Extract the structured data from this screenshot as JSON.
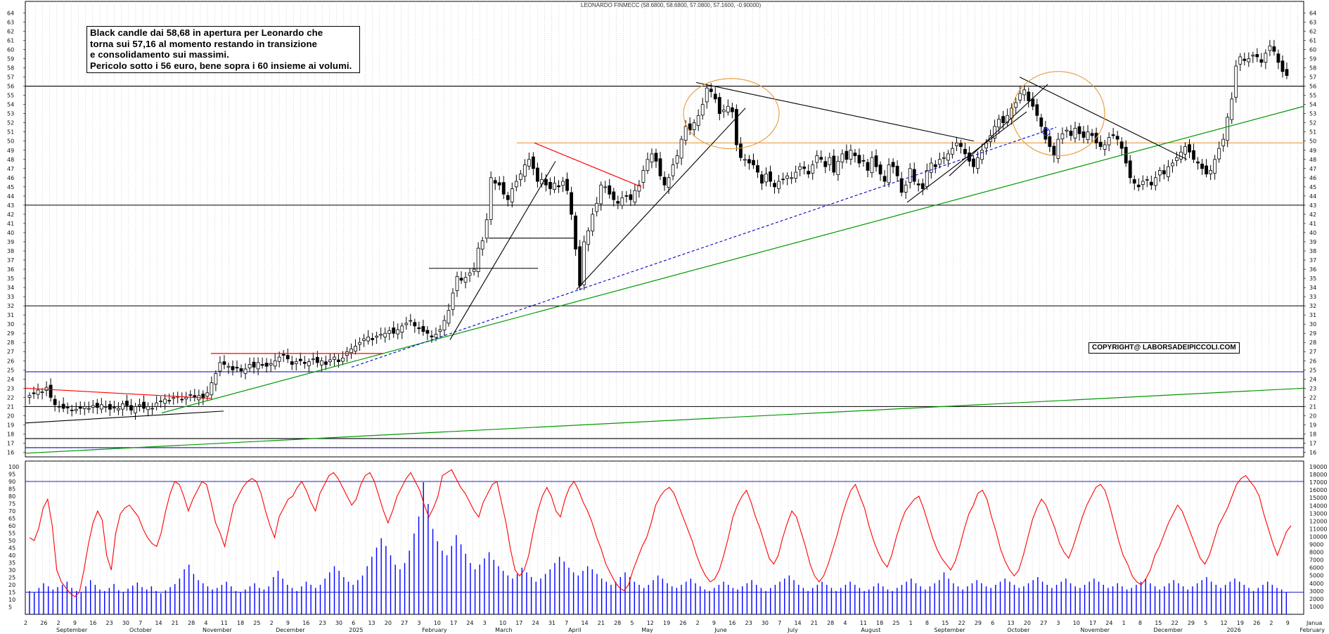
{
  "chart_data": [
    {
      "type": "candlestick",
      "title": "LEONARDO FINMECC (58.6800, 58.6800, 57.0800, 57.1600, -0.90000)",
      "ylim": [
        15.5,
        64.8
      ],
      "price_ticks": [
        16,
        17,
        18,
        19,
        20,
        21,
        22,
        23,
        24,
        25,
        26,
        27,
        28,
        29,
        30,
        31,
        32,
        33,
        34,
        35,
        36,
        37,
        38,
        39,
        40,
        41,
        42,
        43,
        44,
        45,
        46,
        47,
        48,
        49,
        50,
        51,
        52,
        53,
        54,
        55,
        56,
        57,
        58,
        59,
        60,
        61,
        62,
        63,
        64
      ],
      "last_candle": {
        "open": 58.68,
        "high": 58.68,
        "low": 57.08,
        "close": 57.16,
        "change": -0.9
      },
      "daily_closes": [
        22.2,
        22.4,
        22.8,
        22.6,
        23.1,
        22.0,
        21.2,
        21.0,
        20.8,
        20.9,
        20.6,
        20.7,
        20.8,
        21.0,
        20.8,
        21.1,
        20.9,
        21.2,
        21.0,
        20.7,
        20.9,
        20.8,
        21.3,
        21.1,
        20.6,
        21.0,
        21.2,
        20.8,
        21.0,
        20.8,
        21.4,
        21.6,
        21.8,
        21.6,
        22.0,
        22.1,
        21.8,
        22.0,
        22.3,
        22.0,
        22.2,
        21.9,
        22.5,
        23.6,
        24.6,
        25.8,
        25.6,
        25.4,
        25.0,
        25.2,
        24.9,
        25.1,
        25.6,
        25.3,
        25.8,
        25.5,
        25.4,
        25.7,
        26.0,
        26.4,
        26.6,
        26.2,
        25.6,
        25.9,
        26.0,
        25.7,
        25.9,
        26.2,
        25.8,
        26.0,
        25.6,
        26.1,
        26.4,
        25.9,
        26.3,
        27.0,
        27.3,
        27.6,
        28.0,
        28.4,
        28.6,
        28.3,
        28.7,
        28.9,
        29.0,
        29.3,
        29.0,
        29.4,
        29.8,
        30.1,
        30.4,
        29.8,
        29.5,
        29.2,
        29.0,
        28.6,
        28.9,
        29.4,
        30.4,
        31.5,
        33.4,
        35.2,
        34.8,
        35.1,
        35.6,
        36.0,
        38.3,
        39.1,
        41.4,
        46.0,
        45.4,
        45.2,
        44.2,
        43.6,
        44.8,
        45.6,
        46.4,
        47.4,
        48.0,
        47.0,
        45.6,
        45.8,
        45.2,
        44.8,
        45.4,
        45.0,
        45.6,
        44.6,
        42.0,
        38.2,
        34.2,
        39.0,
        40.2,
        42.0,
        43.2,
        45.2,
        45.0,
        44.2,
        43.6,
        43.2,
        43.8,
        44.0,
        43.6,
        44.6,
        45.2,
        46.8,
        48.0,
        48.6,
        47.8,
        46.2,
        45.2,
        46.0,
        47.4,
        48.4,
        50.2,
        51.6,
        51.2,
        52.0,
        52.8,
        54.0,
        55.8,
        55.4,
        54.6,
        53.0,
        53.4,
        53.8,
        53.2,
        49.6,
        48.2,
        48.0,
        47.6,
        47.4,
        46.6,
        45.4,
        46.4,
        45.6,
        45.0,
        45.6,
        45.8,
        46.2,
        46.0,
        46.6,
        47.2,
        47.0,
        46.4,
        47.4,
        48.4,
        48.0,
        47.2,
        48.2,
        46.6,
        47.8,
        48.6,
        48.0,
        49.0,
        48.4,
        47.6,
        47.8,
        46.8,
        48.2,
        47.2,
        46.4,
        45.6,
        47.4,
        47.2,
        46.2,
        44.4,
        45.2,
        47.0,
        45.6,
        45.2,
        44.8,
        46.8,
        47.6,
        47.2,
        48.0,
        48.2,
        48.6,
        49.2,
        49.8,
        49.4,
        48.6,
        47.8,
        47.2,
        48.2,
        49.0,
        49.8,
        50.6,
        51.6,
        52.4,
        52.0,
        52.8,
        53.6,
        54.2,
        55.2,
        55.6,
        54.4,
        53.8,
        52.8,
        51.6,
        50.2,
        49.4,
        48.4,
        50.2,
        50.8,
        51.2,
        50.6,
        51.4,
        50.8,
        50.4,
        51.0,
        50.6,
        49.8,
        49.4,
        49.6,
        50.4,
        50.6,
        50.2,
        49.2,
        47.6,
        46.0,
        45.4,
        45.0,
        45.6,
        45.8,
        45.2,
        46.0,
        46.8,
        46.4,
        47.2,
        47.6,
        48.2,
        48.8,
        49.4,
        48.8,
        48.0,
        47.6,
        47.0,
        46.4,
        46.8,
        48.0,
        49.2,
        50.2,
        52.6,
        54.6,
        58.2,
        59.2,
        58.8,
        59.0,
        59.4,
        59.2,
        58.6,
        59.6,
        60.4,
        59.8,
        58.6,
        57.6,
        57.16
      ]
    },
    {
      "type": "line+bar",
      "panel": "oscillator-and-volume",
      "left_ticks": [
        5,
        10,
        15,
        20,
        25,
        30,
        35,
        40,
        45,
        50,
        55,
        60,
        65,
        70,
        75,
        80,
        85,
        90,
        95,
        100
      ],
      "right_ticks": [
        1000,
        2000,
        3000,
        4000,
        5000,
        6000,
        7000,
        8000,
        9000,
        10000,
        11000,
        12000,
        13000,
        14000,
        15000,
        16000,
        17000,
        18000,
        19000
      ],
      "reference_levels": [
        90,
        15
      ],
      "oscillator": [
        52,
        50,
        58,
        72,
        78,
        60,
        30,
        22,
        18,
        14,
        12,
        15,
        30,
        48,
        62,
        70,
        64,
        40,
        30,
        55,
        68,
        72,
        74,
        70,
        66,
        58,
        52,
        48,
        46,
        55,
        70,
        82,
        90,
        88,
        80,
        70,
        78,
        84,
        90,
        88,
        76,
        62,
        55,
        46,
        60,
        74,
        80,
        86,
        90,
        92,
        90,
        82,
        70,
        60,
        52,
        66,
        72,
        78,
        80,
        86,
        90,
        84,
        76,
        70,
        82,
        88,
        94,
        96,
        92,
        86,
        80,
        74,
        78,
        88,
        94,
        96,
        90,
        80,
        70,
        62,
        70,
        80,
        86,
        92,
        96,
        90,
        84,
        74,
        66,
        72,
        80,
        94,
        96,
        98,
        92,
        86,
        82,
        76,
        70,
        66,
        76,
        82,
        88,
        90,
        76,
        62,
        44,
        30,
        26,
        30,
        40,
        56,
        70,
        80,
        86,
        80,
        70,
        66,
        78,
        86,
        90,
        84,
        76,
        70,
        62,
        52,
        44,
        34,
        28,
        22,
        18,
        16,
        20,
        30,
        38,
        46,
        52,
        62,
        74,
        80,
        84,
        86,
        82,
        74,
        66,
        58,
        50,
        40,
        32,
        26,
        22,
        24,
        30,
        40,
        52,
        66,
        74,
        80,
        84,
        76,
        66,
        58,
        48,
        38,
        34,
        40,
        52,
        62,
        70,
        66,
        56,
        46,
        34,
        26,
        22,
        26,
        34,
        44,
        54,
        66,
        76,
        84,
        88,
        80,
        72,
        60,
        50,
        42,
        36,
        32,
        40,
        52,
        62,
        70,
        74,
        78,
        80,
        72,
        62,
        52,
        44,
        38,
        34,
        30,
        36,
        46,
        58,
        68,
        74,
        82,
        84,
        78,
        66,
        56,
        44,
        36,
        30,
        26,
        30,
        40,
        52,
        64,
        72,
        78,
        74,
        66,
        58,
        48,
        42,
        38,
        46,
        56,
        66,
        74,
        80,
        86,
        88,
        84,
        74,
        62,
        50,
        40,
        34,
        26,
        22,
        20,
        24,
        30,
        40,
        46,
        54,
        62,
        68,
        74,
        70,
        62,
        54,
        46,
        38,
        34,
        40,
        50,
        60,
        66,
        72,
        80,
        88,
        92,
        94,
        90,
        86,
        80,
        68,
        58,
        48,
        40,
        48,
        56,
        60
      ],
      "volume_k": [
        3.0,
        2.8,
        3.4,
        4.0,
        3.6,
        3.2,
        3.5,
        3.8,
        4.2,
        3.4,
        3.0,
        2.8,
        3.6,
        4.4,
        3.8,
        3.2,
        3.0,
        3.4,
        3.9,
        3.1,
        2.9,
        3.3,
        3.7,
        4.1,
        3.5,
        3.2,
        3.6,
        3.0,
        2.7,
        3.1,
        3.5,
        3.9,
        4.6,
        5.8,
        6.4,
        5.2,
        4.4,
        4.0,
        3.6,
        3.2,
        3.4,
        3.8,
        4.2,
        3.6,
        3.0,
        2.8,
        3.2,
        3.6,
        4.0,
        3.4,
        3.2,
        3.6,
        4.8,
        5.6,
        4.6,
        3.8,
        3.4,
        3.0,
        3.6,
        4.2,
        3.8,
        3.4,
        3.8,
        4.6,
        5.4,
        6.2,
        5.6,
        4.8,
        4.2,
        3.8,
        4.4,
        5.0,
        6.2,
        7.4,
        8.6,
        9.8,
        8.8,
        7.6,
        6.4,
        5.8,
        6.6,
        8.2,
        10.4,
        12.6,
        17.0,
        14.2,
        11.0,
        9.4,
        8.2,
        7.6,
        8.8,
        10.2,
        9.0,
        7.8,
        6.6,
        5.8,
        6.4,
        7.2,
        8.0,
        7.0,
        6.2,
        5.6,
        5.0,
        4.6,
        5.2,
        6.0,
        5.4,
        4.8,
        4.2,
        4.6,
        5.2,
        5.8,
        6.6,
        7.4,
        6.8,
        6.0,
        5.4,
        5.0,
        5.6,
        6.2,
        5.8,
        5.2,
        4.6,
        4.2,
        3.8,
        4.2,
        4.8,
        5.4,
        4.8,
        4.2,
        3.8,
        3.4,
        3.8,
        4.4,
        5.0,
        4.6,
        4.0,
        3.6,
        3.4,
        3.8,
        4.2,
        4.6,
        4.0,
        3.6,
        3.2,
        3.0,
        3.4,
        3.8,
        4.2,
        3.8,
        3.4,
        3.2,
        3.6,
        4.0,
        4.4,
        3.8,
        3.4,
        3.0,
        3.4,
        3.8,
        4.2,
        4.6,
        5.0,
        4.4,
        3.8,
        3.4,
        3.0,
        3.4,
        3.8,
        4.2,
        3.8,
        3.4,
        3.0,
        3.4,
        3.8,
        4.2,
        3.8,
        3.4,
        3.0,
        3.2,
        3.6,
        4.0,
        3.6,
        3.2,
        3.0,
        3.4,
        3.8,
        4.2,
        4.6,
        4.0,
        3.6,
        3.2,
        3.6,
        4.0,
        4.4,
        5.4,
        4.6,
        4.0,
        3.6,
        3.2,
        3.6,
        4.0,
        4.4,
        4.0,
        3.6,
        3.4,
        3.8,
        4.2,
        4.6,
        4.2,
        3.8,
        3.4,
        3.6,
        4.0,
        4.4,
        4.8,
        4.2,
        3.8,
        3.4,
        3.8,
        4.2,
        4.6,
        4.0,
        3.6,
        3.4,
        3.8,
        4.2,
        4.6,
        4.2,
        3.8,
        3.4,
        3.6,
        4.0,
        3.6,
        3.2,
        3.4,
        3.8,
        4.2,
        4.6,
        4.0,
        3.6,
        3.2,
        3.6,
        4.0,
        4.4,
        4.0,
        3.6,
        3.2,
        3.6,
        4.0,
        4.4,
        4.8,
        4.2,
        3.8,
        3.4,
        3.8,
        4.2,
        4.6,
        4.2,
        3.8,
        3.4,
        3.0,
        3.4,
        3.8,
        4.2,
        3.8,
        3.4,
        3.2,
        2.8
      ]
    }
  ],
  "price_lines": {
    "horizontal": [
      56.0,
      43.0,
      32.0,
      21.0,
      17.5,
      16.5
    ],
    "blue_horizontal": [
      24.8,
      16.5
    ],
    "orange_horizontal": 49.8
  },
  "x_axis": {
    "day_ticks": [
      "2",
      "26",
      "2",
      "9",
      "16",
      "23",
      "30",
      "7",
      "14",
      "21",
      "28",
      "4",
      "11",
      "18",
      "25",
      "2",
      "9",
      "16",
      "23",
      "30",
      "6",
      "13",
      "20",
      "27",
      "3",
      "10",
      "17",
      "24",
      "3",
      "10",
      "17",
      "24",
      "31",
      "7",
      "14",
      "21",
      "28",
      "5",
      "12",
      "19",
      "26",
      "2",
      "9",
      "16",
      "23",
      "30",
      "7",
      "14",
      "21",
      "28",
      "4",
      "11",
      "18",
      "25",
      "1",
      "8",
      "15",
      "22",
      "29",
      "6",
      "13",
      "20",
      "27",
      "3",
      "10",
      "17",
      "24",
      "1",
      "8",
      "15",
      "22",
      "29",
      "5",
      "12",
      "19",
      "26",
      "2",
      "9"
    ],
    "months": [
      "September",
      "October",
      "November",
      "December",
      "2025",
      "February",
      "March",
      "April",
      "May",
      "June",
      "July",
      "August",
      "September",
      "October",
      "November",
      "December",
      "2026",
      "February"
    ],
    "year_label_right": "Janua"
  },
  "annotation": {
    "lines": [
      "Black candle dai 58,68 in apertura per Leonardo che",
      "torna sui 57,16 al momento restando in transizione",
      "e consolidamento sui massimi.",
      "Pericolo sotto i 56 euro, bene sopra i 60 insieme ai volumi."
    ]
  },
  "copyright": "COPYRIGHT@ LABORSADEIPICCOLI.COM",
  "colors": {
    "candle_up": "#ffffff",
    "candle_down": "#000000",
    "trend_black": "#000000",
    "trend_green": "#009900",
    "trend_red": "#ff0000",
    "trend_blue_dashed": "#0000cc",
    "orange_level": "#e89a3a",
    "oscillator": "#ff0000",
    "volume": "#0000ff",
    "grid": "#b8b8b8"
  }
}
